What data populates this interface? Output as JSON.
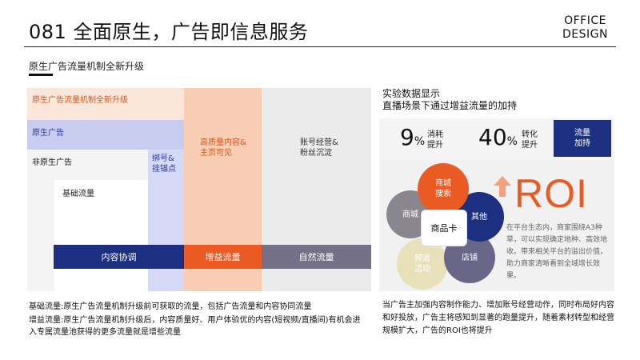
{
  "header": {
    "title": "081 全面原生，广告即信息服务",
    "brand_line1": "OFFICE",
    "brand_line2": "DESIGN"
  },
  "left": {
    "subtitle": "原生广告流量机制全新升级",
    "diagram": {
      "peach_label": "原生广告流量机制全新升级",
      "blue_label": "原生广告",
      "bind_label_1": "绑号&",
      "bind_label_2": "挂锚点",
      "white_label": "非原生广告",
      "base_label": "基础流量",
      "quality_label_1": "高质量内容&",
      "quality_label_2": "主页可见",
      "account_label_1": "账号经营&",
      "account_label_2": "粉丝沉淀",
      "bar_content": "内容协调",
      "bar_boost": "增益流量",
      "bar_natural": "自然流量"
    },
    "note1": "基础流量:原生广告流量机制升级前可获取的流量，包括广告流量和内容协同流量",
    "note2": "增益流量:原生广告流量机制升级后，内容质量好、用户体验优的内容(短视频/直播间)有机会进入专属流量池获得的更多流量就是增些流量"
  },
  "right": {
    "title_1": "实验数据显示",
    "title_2": "直播场景下通过增益流量的加持",
    "stat1_num": "9",
    "stat1_pct": "%",
    "stat1_text_1": "消耗",
    "stat1_text_2": "提升",
    "stat2_num": "40",
    "stat2_pct": "%",
    "stat2_text_1": "转化",
    "stat2_text_2": "提升",
    "flow_1": "流量",
    "flow_2": "加持",
    "circle_center": "商品卡",
    "circle_search_1": "商城",
    "circle_search_2": "搜索",
    "circle_other": "其他",
    "circle_mall": "商城",
    "circle_store": "店铺",
    "circle_channel_1": "频道",
    "circle_channel_2": "活动",
    "roi": "ROI",
    "roi_desc": "在平台生态内，商家围绕A3种草，可以实现确定地种、高效地收。带来相关平台的溢出价值，助力商家清晰看到全域增长效果。",
    "note3": "当广告主加强内容制作能力、增加账号经营动作，同时布局好内容和好投放，广告主将感知到显著的跑量提升，随着素材转型和经营规模扩大，广告的ROI也将提升"
  },
  "colors": {
    "orange": "#ec5a24",
    "navy": "#1d2f80",
    "grey_purple": "#747087",
    "light_blue": "#c8cdf0",
    "peach": "#f9cdb3"
  }
}
